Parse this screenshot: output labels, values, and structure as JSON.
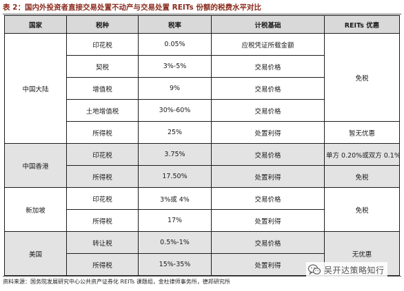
{
  "caption": "表 2：国内外投资者直接交易处置不动产与交易处置 REITs 份额的税费水平对比",
  "headers": {
    "country": "国家",
    "tax_type": "税种",
    "rate": "税率",
    "basis": "计税基础",
    "preference": "REITs 优惠"
  },
  "mainland": {
    "country": "中国大陆",
    "rows": [
      {
        "tax": "印花税",
        "rate": "0.05%",
        "basis": "应税凭证所载金额"
      },
      {
        "tax": "契税",
        "rate": "3%-5%",
        "basis": "交易价格"
      },
      {
        "tax": "增值税",
        "rate": "9%",
        "basis": "交易价格"
      },
      {
        "tax": "土地增值税",
        "rate": "30%-60%",
        "basis": "交易价格"
      },
      {
        "tax": "所得税",
        "rate": "25%",
        "basis": "处置利得"
      }
    ],
    "pref_main": "免税",
    "pref_income": "暂无优惠"
  },
  "hongkong": {
    "country": "中国香港",
    "rows": [
      {
        "tax": "印花税",
        "rate": "3.75%",
        "basis": "交易价格",
        "pref": "单方 0.20%或双方 0.1%"
      },
      {
        "tax": "所得税",
        "rate": "17.50%",
        "basis": "处置利得",
        "pref": "免税"
      }
    ]
  },
  "singapore": {
    "country": "新加坡",
    "rows": [
      {
        "tax": "印花税",
        "rate": "3%或 4%",
        "basis": "交易价格"
      },
      {
        "tax": "所得税",
        "rate": "17%",
        "basis": "处置利得"
      }
    ],
    "pref": "免税"
  },
  "usa": {
    "country": "美国",
    "rows": [
      {
        "tax": "转让税",
        "rate": "0.5%-1%",
        "basis": "交易价格"
      },
      {
        "tax": "所得税",
        "rate": "15%-35%",
        "basis": "处置利得"
      }
    ],
    "pref": "无优惠"
  },
  "source": "资料来源：国务院发展研究中心公共资产证券化 REITs 课题组，金杜律师事务所，德邦研究所",
  "watermark": {
    "text": "吴开达策略知行",
    "icon": "wechat-icon"
  }
}
